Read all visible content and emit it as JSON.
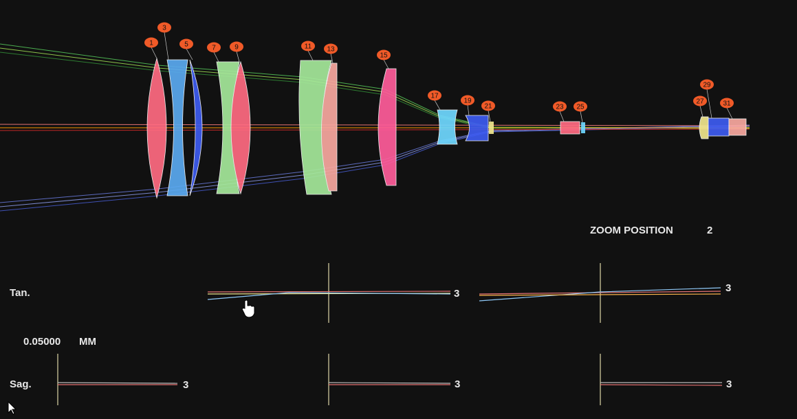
{
  "lens_layout": {
    "surface_labels": [
      "1",
      "3",
      "5",
      "7",
      "9",
      "11",
      "13",
      "15",
      "17",
      "19",
      "21",
      "23",
      "25",
      "27",
      "29",
      "31"
    ]
  },
  "zoom_position": {
    "label": "ZOOM POSITION",
    "value": "2"
  },
  "ray_fan": {
    "tangential_label": "Tan.",
    "sagittal_label": "Sag.",
    "scale_value": "0.05000",
    "scale_unit": "MM",
    "tangential_field_labels": [
      "3",
      "3"
    ],
    "sagittal_field_labels": [
      "3",
      "3",
      "3"
    ]
  }
}
